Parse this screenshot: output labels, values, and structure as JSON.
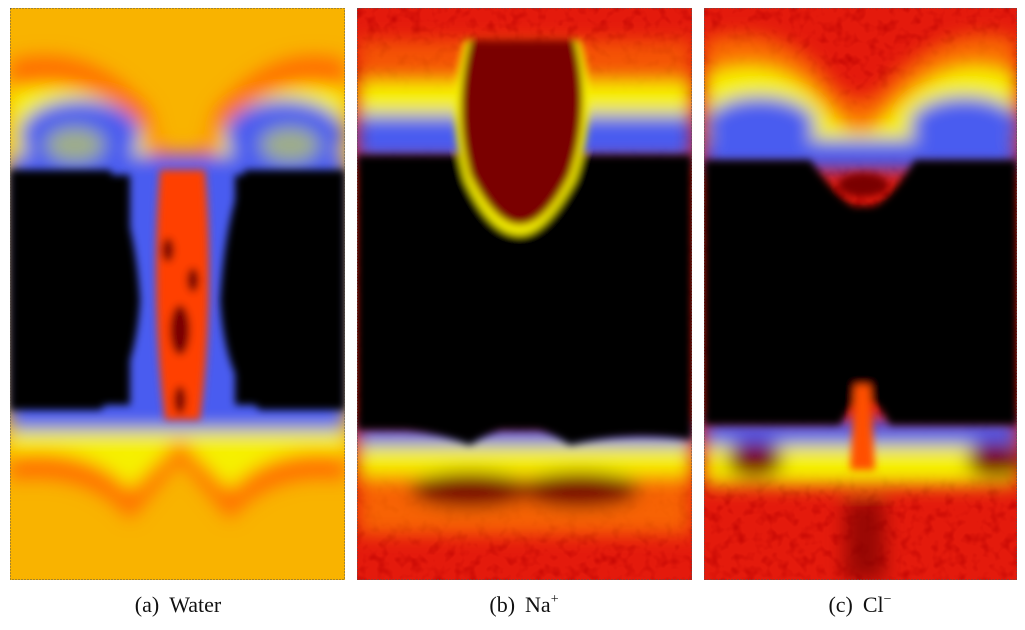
{
  "panels": [
    {
      "label": "(a)",
      "caption": "Water"
    },
    {
      "label": "(b)",
      "caption": "Na",
      "superscript": "+"
    },
    {
      "label": "(c)",
      "caption": "Cl",
      "superscript": "−"
    }
  ]
}
